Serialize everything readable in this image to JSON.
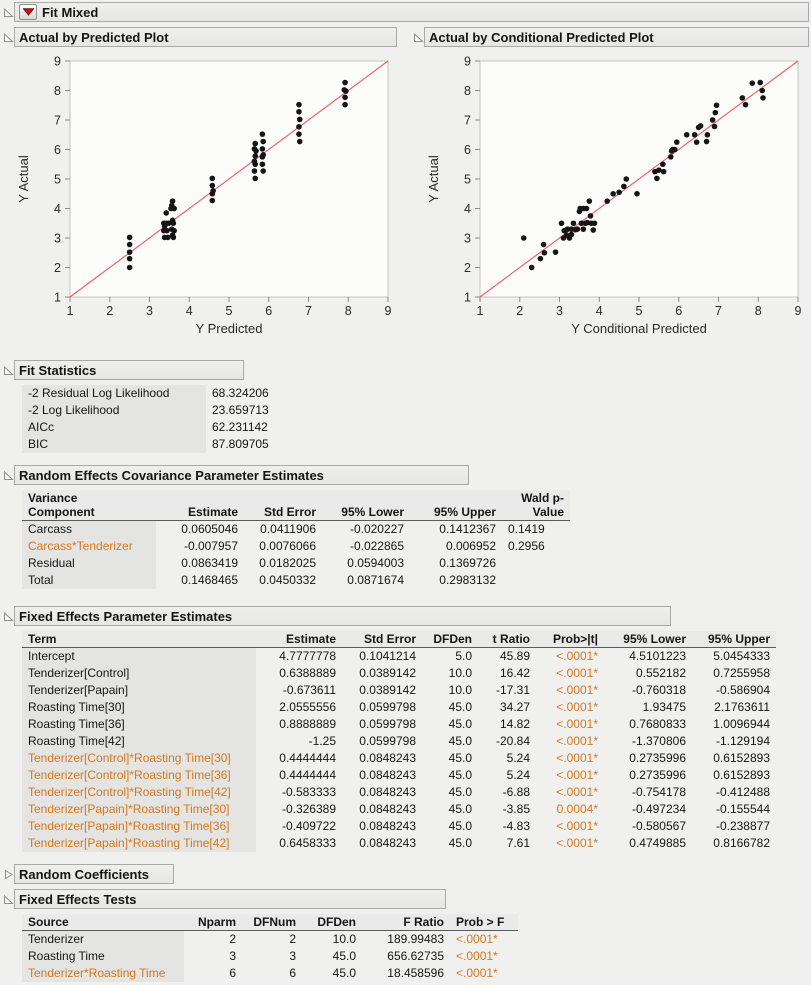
{
  "sections": {
    "fit_mixed": {
      "title": "Fit Mixed"
    },
    "plot1": {
      "title": "Actual by Predicted Plot"
    },
    "plot2": {
      "title": "Actual by Conditional Predicted Plot"
    },
    "fit_statistics": {
      "title": "Fit Statistics"
    },
    "random_effects": {
      "title": "Random Effects Covariance Parameter Estimates"
    },
    "fixed_effects": {
      "title": "Fixed Effects Parameter Estimates"
    },
    "random_coefficients": {
      "title": "Random Coefficients"
    },
    "fixed_effects_tests": {
      "title": "Fixed Effects Tests"
    }
  },
  "colors": {
    "pvalue_orange": "#d6781e",
    "identity_line_red": "#ee5a60",
    "point_black": "#151515",
    "red_triangle": "#c61a1a"
  },
  "chart_data": [
    {
      "type": "scatter",
      "title": "Actual by Predicted Plot",
      "xlabel": "Y Predicted",
      "ylabel": "Y Actual",
      "xlim": [
        1,
        9
      ],
      "ylim": [
        1,
        9
      ],
      "xticks": [
        1,
        2,
        3,
        4,
        5,
        6,
        7,
        8,
        9
      ],
      "yticks": [
        1,
        2,
        3,
        4,
        5,
        6,
        7,
        8,
        9
      ],
      "grid": false,
      "ref_line": {
        "from": [
          1,
          1
        ],
        "to": [
          9,
          9
        ]
      },
      "points": [
        [
          2.5,
          2.0
        ],
        [
          2.5,
          2.3
        ],
        [
          2.5,
          2.52
        ],
        [
          2.5,
          2.78
        ],
        [
          2.5,
          3.02
        ],
        [
          3.36,
          3.5
        ],
        [
          3.42,
          3.5
        ],
        [
          3.48,
          3.5
        ],
        [
          3.38,
          3.4
        ],
        [
          3.36,
          3.25
        ],
        [
          3.44,
          3.25
        ],
        [
          3.4,
          3.27
        ],
        [
          3.38,
          3.02
        ],
        [
          3.46,
          3.02
        ],
        [
          3.42,
          3.85
        ],
        [
          3.58,
          4.25
        ],
        [
          3.56,
          4.1
        ],
        [
          3.54,
          4.0
        ],
        [
          3.62,
          4.0
        ],
        [
          3.58,
          3.6
        ],
        [
          3.6,
          3.5
        ],
        [
          3.56,
          3.3
        ],
        [
          3.62,
          3.25
        ],
        [
          3.58,
          3.1
        ],
        [
          3.6,
          3.02
        ],
        [
          4.58,
          5.02
        ],
        [
          4.58,
          4.78
        ],
        [
          4.6,
          4.6
        ],
        [
          4.58,
          4.5
        ],
        [
          4.58,
          4.27
        ],
        [
          5.66,
          6.2
        ],
        [
          5.64,
          6.02
        ],
        [
          5.68,
          5.95
        ],
        [
          5.66,
          5.78
        ],
        [
          5.64,
          5.6
        ],
        [
          5.66,
          5.5
        ],
        [
          5.64,
          5.27
        ],
        [
          5.66,
          5.02
        ],
        [
          5.84,
          6.52
        ],
        [
          5.86,
          6.27
        ],
        [
          5.84,
          6.02
        ],
        [
          5.86,
          5.82
        ],
        [
          5.84,
          5.75
        ],
        [
          5.84,
          5.5
        ],
        [
          5.86,
          5.27
        ],
        [
          6.76,
          7.52
        ],
        [
          6.76,
          7.28
        ],
        [
          6.78,
          7.02
        ],
        [
          6.76,
          6.77
        ],
        [
          6.76,
          6.52
        ],
        [
          6.78,
          6.27
        ],
        [
          7.92,
          8.27
        ],
        [
          7.9,
          8.02
        ],
        [
          7.94,
          7.98
        ],
        [
          7.92,
          7.77
        ],
        [
          7.92,
          7.52
        ]
      ]
    },
    {
      "type": "scatter",
      "title": "Actual by Conditional Predicted Plot",
      "xlabel": "Y Conditional Predicted",
      "ylabel": "Y Actual",
      "xlim": [
        1,
        9
      ],
      "ylim": [
        1,
        9
      ],
      "xticks": [
        1,
        2,
        3,
        4,
        5,
        6,
        7,
        8,
        9
      ],
      "yticks": [
        1,
        2,
        3,
        4,
        5,
        6,
        7,
        8,
        9
      ],
      "grid": false,
      "ref_line": {
        "from": [
          1,
          1
        ],
        "to": [
          9,
          9
        ]
      },
      "points": [
        [
          2.1,
          3.0
        ],
        [
          2.3,
          2.0
        ],
        [
          2.52,
          2.3
        ],
        [
          2.6,
          2.78
        ],
        [
          2.62,
          2.5
        ],
        [
          2.9,
          2.52
        ],
        [
          3.05,
          3.5
        ],
        [
          3.1,
          3.0
        ],
        [
          3.12,
          3.25
        ],
        [
          3.18,
          3.1
        ],
        [
          3.2,
          3.3
        ],
        [
          3.25,
          3.0
        ],
        [
          3.3,
          3.3
        ],
        [
          3.3,
          3.12
        ],
        [
          3.35,
          3.5
        ],
        [
          3.4,
          3.28
        ],
        [
          3.45,
          3.3
        ],
        [
          3.5,
          3.9
        ],
        [
          3.52,
          4.0
        ],
        [
          3.55,
          3.5
        ],
        [
          3.6,
          4.0
        ],
        [
          3.6,
          3.3
        ],
        [
          3.65,
          3.5
        ],
        [
          3.68,
          4.0
        ],
        [
          3.7,
          3.52
        ],
        [
          3.75,
          4.25
        ],
        [
          3.78,
          3.75
        ],
        [
          3.8,
          3.5
        ],
        [
          3.85,
          3.27
        ],
        [
          3.88,
          3.5
        ],
        [
          4.2,
          4.25
        ],
        [
          4.35,
          4.5
        ],
        [
          4.5,
          4.55
        ],
        [
          4.62,
          4.75
        ],
        [
          4.68,
          5.0
        ],
        [
          4.95,
          4.5
        ],
        [
          5.4,
          5.25
        ],
        [
          5.45,
          5.02
        ],
        [
          5.5,
          5.3
        ],
        [
          5.6,
          5.5
        ],
        [
          5.62,
          5.25
        ],
        [
          5.8,
          5.75
        ],
        [
          5.82,
          5.95
        ],
        [
          5.85,
          6.0
        ],
        [
          5.9,
          6.0
        ],
        [
          5.95,
          6.25
        ],
        [
          6.2,
          6.5
        ],
        [
          6.4,
          6.5
        ],
        [
          6.45,
          6.25
        ],
        [
          6.5,
          6.75
        ],
        [
          6.55,
          6.8
        ],
        [
          6.7,
          6.27
        ],
        [
          6.72,
          6.5
        ],
        [
          6.85,
          7.0
        ],
        [
          6.9,
          6.78
        ],
        [
          6.92,
          7.25
        ],
        [
          6.95,
          7.5
        ],
        [
          7.6,
          7.75
        ],
        [
          7.68,
          7.52
        ],
        [
          7.85,
          8.25
        ],
        [
          8.05,
          8.27
        ],
        [
          8.1,
          8.0
        ],
        [
          8.12,
          7.75
        ]
      ]
    }
  ],
  "tables": {
    "fit_statistics": {
      "widths": [
        172,
        90
      ],
      "align": [
        "left",
        "left"
      ],
      "rows": [
        [
          "-2 Residual Log Likelihood",
          "68.324206"
        ],
        [
          "-2 Log Likelihood",
          "23.659713"
        ],
        [
          "AICc",
          "62.231142"
        ],
        [
          "BIC",
          "87.809705"
        ]
      ]
    },
    "random_effects": {
      "headers": [
        "Variance\nComponent",
        "Estimate",
        "Std Error",
        "95% Lower",
        "95% Upper",
        "Wald p-\nValue"
      ],
      "header_align": [
        "left",
        "right",
        "right",
        "right",
        "right",
        "right"
      ],
      "align": [
        "left",
        "right",
        "right",
        "right",
        "right",
        "left"
      ],
      "widths": [
        122,
        76,
        66,
        76,
        80,
        56
      ],
      "rows": [
        [
          "Carcass",
          "0.0605046",
          "0.0411906",
          "-0.020227",
          "0.1412367",
          "0.1419"
        ],
        [
          "Carcass*Tenderizer",
          "-0.007957",
          "0.0076066",
          "-0.022865",
          "0.006952",
          "0.2956"
        ],
        [
          "Residual",
          "0.0863419",
          "0.0182025",
          "0.0594003",
          "0.1369726",
          ""
        ],
        [
          "Total",
          "0.1468465",
          "0.0450332",
          "0.0871674",
          "0.2983132",
          ""
        ]
      ]
    },
    "fixed_effects": {
      "headers": [
        "Term",
        "Estimate",
        "Std Error",
        "DFDen",
        "t Ratio",
        "Prob>|t|",
        "95% Lower",
        "95% Upper"
      ],
      "header_align": [
        "left",
        "right",
        "right",
        "right",
        "right",
        "right",
        "right",
        "right"
      ],
      "align": [
        "left",
        "right",
        "right",
        "right",
        "right",
        "right",
        "right",
        "right"
      ],
      "widths": [
        222,
        74,
        68,
        44,
        46,
        56,
        76,
        72
      ],
      "rows": [
        [
          "Intercept",
          "4.7777778",
          "0.1041214",
          "5.0",
          "45.89",
          "<.0001*",
          "4.5101223",
          "5.0454333"
        ],
        [
          "Tenderizer[Control]",
          "0.6388889",
          "0.0389142",
          "10.0",
          "16.42",
          "<.0001*",
          "0.552182",
          "0.7255958"
        ],
        [
          "Tenderizer[Papain]",
          "-0.673611",
          "0.0389142",
          "10.0",
          "-17.31",
          "<.0001*",
          "-0.760318",
          "-0.586904"
        ],
        [
          "Roasting Time[30]",
          "2.0555556",
          "0.0599798",
          "45.0",
          "34.27",
          "<.0001*",
          "1.93475",
          "2.1763611"
        ],
        [
          "Roasting Time[36]",
          "0.8888889",
          "0.0599798",
          "45.0",
          "14.82",
          "<.0001*",
          "0.7680833",
          "1.0096944"
        ],
        [
          "Roasting Time[42]",
          "-1.25",
          "0.0599798",
          "45.0",
          "-20.84",
          "<.0001*",
          "-1.370806",
          "-1.129194"
        ],
        [
          "Tenderizer[Control]*Roasting Time[30]",
          "0.4444444",
          "0.0848243",
          "45.0",
          "5.24",
          "<.0001*",
          "0.2735996",
          "0.6152893"
        ],
        [
          "Tenderizer[Control]*Roasting Time[36]",
          "0.4444444",
          "0.0848243",
          "45.0",
          "5.24",
          "<.0001*",
          "0.2735996",
          "0.6152893"
        ],
        [
          "Tenderizer[Control]*Roasting Time[42]",
          "-0.583333",
          "0.0848243",
          "45.0",
          "-6.88",
          "<.0001*",
          "-0.754178",
          "-0.412488"
        ],
        [
          "Tenderizer[Papain]*Roasting Time[30]",
          "-0.326389",
          "0.0848243",
          "45.0",
          "-3.85",
          "0.0004*",
          "-0.497234",
          "-0.155544"
        ],
        [
          "Tenderizer[Papain]*Roasting Time[36]",
          "-0.409722",
          "0.0848243",
          "45.0",
          "-4.83",
          "<.0001*",
          "-0.580567",
          "-0.238877"
        ],
        [
          "Tenderizer[Papain]*Roasting Time[42]",
          "0.6458333",
          "0.0848243",
          "45.0",
          "7.61",
          "<.0001*",
          "0.4749885",
          "0.8166782"
        ]
      ]
    },
    "fixed_effects_tests": {
      "headers": [
        "Source",
        "Nparm",
        "DFNum",
        "DFDen",
        "F Ratio",
        "Prob > F"
      ],
      "header_align": [
        "left",
        "right",
        "right",
        "right",
        "right",
        "left"
      ],
      "align": [
        "left",
        "right",
        "right",
        "right",
        "right",
        "left"
      ],
      "widths": [
        150,
        46,
        48,
        48,
        76,
        56
      ],
      "rows": [
        [
          "Tenderizer",
          "2",
          "2",
          "10.0",
          "189.99483",
          "<.0001*"
        ],
        [
          "Roasting Time",
          "3",
          "3",
          "45.0",
          "656.62735",
          "<.0001*"
        ],
        [
          "Tenderizer*Roasting Time",
          "6",
          "6",
          "45.0",
          "18.458596",
          "<.0001*"
        ]
      ]
    }
  }
}
